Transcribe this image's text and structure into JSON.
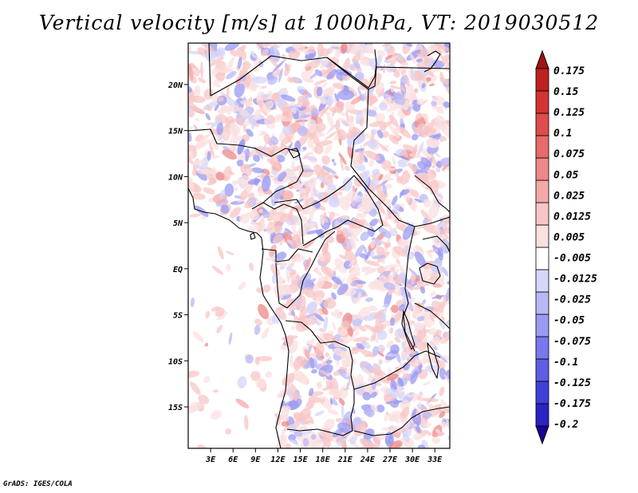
{
  "title": "Vertical velocity [m/s] at 1000hPa, VT: 2019030512",
  "credit": "GrADS: IGES/COLA",
  "map": {
    "lat_range": [
      -19.5,
      24.5
    ],
    "lon_range": [
      0,
      35
    ],
    "lat_ticks": [
      {
        "value": 20,
        "label": "20N"
      },
      {
        "value": 15,
        "label": "15N"
      },
      {
        "value": 10,
        "label": "10N"
      },
      {
        "value": 5,
        "label": "5N"
      },
      {
        "value": 0,
        "label": "EQ"
      },
      {
        "value": -5,
        "label": "5S"
      },
      {
        "value": -10,
        "label": "10S"
      },
      {
        "value": -15,
        "label": "15S"
      }
    ],
    "lon_ticks": [
      {
        "value": 3,
        "label": "3E"
      },
      {
        "value": 6,
        "label": "6E"
      },
      {
        "value": 9,
        "label": "9E"
      },
      {
        "value": 12,
        "label": "12E"
      },
      {
        "value": 15,
        "label": "15E"
      },
      {
        "value": 18,
        "label": "18E"
      },
      {
        "value": 21,
        "label": "21E"
      },
      {
        "value": 24,
        "label": "24E"
      },
      {
        "value": 27,
        "label": "27E"
      },
      {
        "value": 30,
        "label": "30E"
      },
      {
        "value": 33,
        "label": "33E"
      }
    ]
  },
  "colorbar": {
    "colors": [
      "#1a0096",
      "#2a24c2",
      "#4040d8",
      "#5e5ee4",
      "#7878ec",
      "#9a9af2",
      "#b8b8f6",
      "#d6d6fa",
      "#ffffff",
      "#fbe0e0",
      "#f8c6c6",
      "#f4a8a8",
      "#ee8888",
      "#e86a6a",
      "#de4c4c",
      "#d23434",
      "#c02020",
      "#a01414"
    ],
    "labels": [
      "0.175",
      "0.15",
      "0.125",
      "0.1",
      "0.075",
      "0.05",
      "0.025",
      "0.0125",
      "0.005",
      "-0.005",
      "-0.0125",
      "-0.025",
      "-0.05",
      "-0.075",
      "-0.1",
      "-0.125",
      "-0.175",
      "-0.2"
    ]
  }
}
